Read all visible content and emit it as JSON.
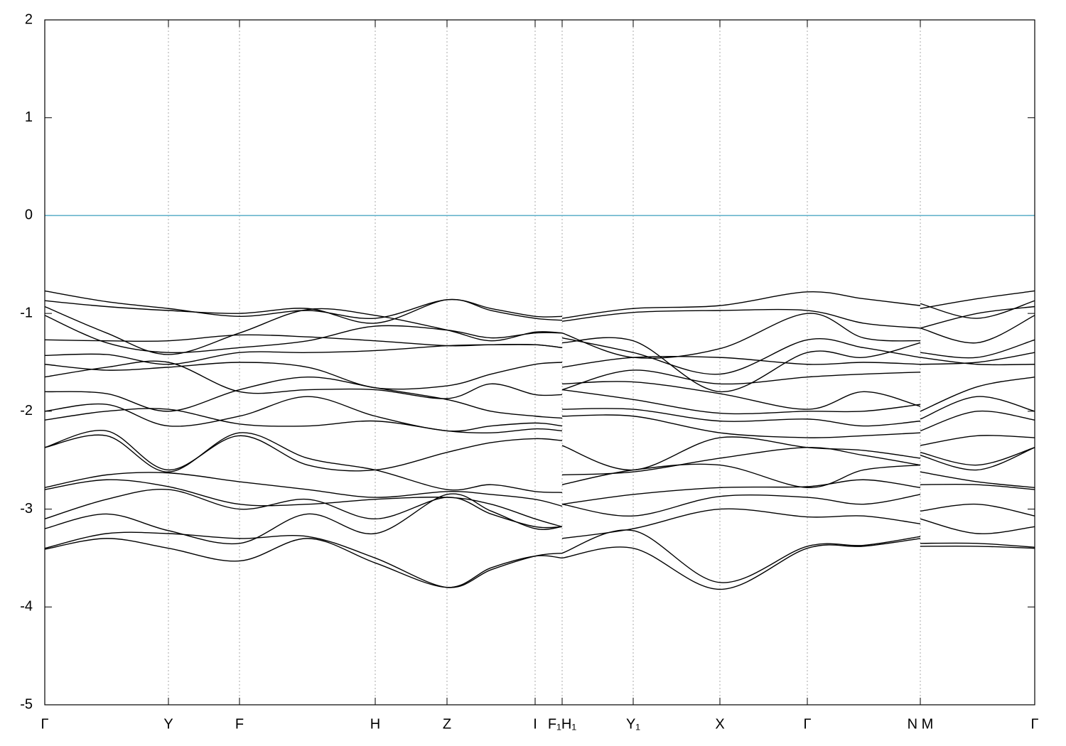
{
  "chart_data": {
    "type": "line",
    "x": [
      0,
      0.87,
      1.74,
      2.74,
      3.7,
      4.65,
      5.66,
      6.28,
      6.9,
      7.28,
      7.28,
      7.28,
      8.28,
      9.5,
      10.73,
      11.52,
      12.32,
      12.32,
      12.32,
      13.12,
      13.93
    ],
    "xlim": [
      0,
      13.93
    ],
    "xticks": [
      {
        "value": 0,
        "label": "Γ"
      },
      {
        "value": 1.74,
        "label": "Y"
      },
      {
        "value": 2.74,
        "label": "F"
      },
      {
        "value": 4.65,
        "label": "H"
      },
      {
        "value": 5.66,
        "label": "Z"
      },
      {
        "value": 6.9,
        "label": "I"
      },
      {
        "value": 7.28,
        "label": "F₁H₁"
      },
      {
        "value": 8.28,
        "label": "Y₁"
      },
      {
        "value": 9.5,
        "label": "X"
      },
      {
        "value": 10.73,
        "label": "Γ"
      },
      {
        "value": 12.32,
        "label": "N M"
      },
      {
        "value": 13.93,
        "label": "Γ"
      }
    ],
    "ylim": [
      -5,
      2
    ],
    "yticks": [
      2,
      1,
      0,
      -1,
      -2,
      -3,
      -4,
      -5
    ],
    "grid": true,
    "reference_line": {
      "y": 0,
      "color": "#5aaec8"
    },
    "series": [
      {
        "color": "#000000",
        "values": [
          -0.77,
          -0.88,
          -0.95,
          -1.03,
          -0.97,
          -1.05,
          -0.86,
          -0.95,
          -1.03,
          -1.03,
          null,
          -1.05,
          -0.95,
          -0.92,
          -0.78,
          -0.85,
          -0.92,
          null,
          -0.95,
          -0.85,
          -0.77
        ]
      },
      {
        "color": "#000000",
        "values": [
          -0.87,
          -0.93,
          -0.97,
          -1.0,
          -0.95,
          -1.1,
          -0.86,
          -0.97,
          -1.05,
          -1.07,
          null,
          -1.08,
          -0.99,
          -0.97,
          -0.97,
          -1.1,
          -1.15,
          null,
          -0.9,
          -1.05,
          -0.87
        ]
      },
      {
        "color": "#000000",
        "values": [
          -0.93,
          -1.2,
          -1.42,
          -1.2,
          -0.96,
          -1.02,
          -1.17,
          -1.28,
          -1.19,
          -1.2,
          null,
          -1.2,
          -1.45,
          -1.36,
          -1.0,
          -1.25,
          -1.28,
          null,
          -1.15,
          -1.0,
          -0.93
        ]
      },
      {
        "color": "#000000",
        "values": [
          -1.02,
          -1.3,
          -1.4,
          -1.35,
          -1.28,
          -1.13,
          -1.17,
          -1.25,
          -1.2,
          -1.2,
          null,
          -1.25,
          -1.4,
          -1.62,
          -1.27,
          -1.35,
          -1.45,
          null,
          -1.15,
          -1.3,
          -1.02
        ]
      },
      {
        "color": "#000000",
        "values": [
          -1.27,
          -1.28,
          -1.28,
          -1.22,
          -1.24,
          -1.28,
          -1.33,
          -1.32,
          -1.32,
          -1.35,
          null,
          -1.3,
          -1.28,
          -1.8,
          -1.4,
          -1.45,
          -1.3,
          null,
          -1.4,
          -1.45,
          -1.27
        ]
      },
      {
        "color": "#000000",
        "values": [
          -1.43,
          -1.42,
          -1.52,
          -1.4,
          -1.4,
          -1.38,
          -1.33,
          -1.32,
          -1.32,
          -1.35,
          null,
          -1.55,
          -1.45,
          -1.45,
          -1.52,
          -1.5,
          -1.52,
          null,
          -1.45,
          -1.52,
          -1.52
        ]
      },
      {
        "color": "#000000",
        "values": [
          -1.52,
          -1.58,
          -1.55,
          -1.5,
          -1.55,
          -1.76,
          -1.74,
          -1.62,
          -1.52,
          -1.5,
          null,
          -1.78,
          -1.58,
          -1.72,
          -1.65,
          -1.62,
          -1.6,
          null,
          -1.52,
          -1.5,
          -1.4
        ]
      },
      {
        "color": "#000000",
        "values": [
          -1.65,
          -1.55,
          -1.5,
          -1.8,
          -1.78,
          -1.78,
          -1.87,
          -1.72,
          -1.83,
          -1.83,
          null,
          -1.72,
          -1.7,
          -1.82,
          -1.98,
          -1.8,
          -1.95,
          null,
          -2.0,
          -1.75,
          -1.65
        ]
      },
      {
        "color": "#000000",
        "values": [
          -1.8,
          -1.82,
          -2.0,
          -1.78,
          -1.65,
          -1.76,
          -1.88,
          -2.0,
          -2.05,
          -2.07,
          null,
          -1.78,
          -1.88,
          -2.02,
          -2.0,
          -2.0,
          -1.93,
          null,
          -2.08,
          -1.85,
          -2.0
        ]
      },
      {
        "color": "#000000",
        "values": [
          -2.0,
          -1.93,
          -2.15,
          -2.05,
          -1.85,
          -2.05,
          -2.2,
          -2.15,
          -2.12,
          -2.15,
          null,
          -1.98,
          -1.98,
          -2.1,
          -2.08,
          -2.15,
          -2.1,
          null,
          -2.2,
          -2.0,
          -2.09
        ]
      },
      {
        "color": "#000000",
        "values": [
          -2.09,
          -2.0,
          -1.98,
          -2.13,
          -2.15,
          -2.1,
          -2.2,
          -2.22,
          -2.18,
          -2.2,
          null,
          -2.05,
          -2.05,
          -2.22,
          -2.27,
          -2.25,
          -2.22,
          null,
          -2.35,
          -2.25,
          -2.27
        ]
      },
      {
        "color": "#000000",
        "values": [
          -2.37,
          -2.2,
          -2.6,
          -2.25,
          -2.55,
          -2.6,
          -2.42,
          -2.32,
          -2.28,
          -2.3,
          null,
          -2.35,
          -2.6,
          -2.27,
          -2.37,
          -2.4,
          -2.48,
          null,
          -2.45,
          -2.6,
          -2.37
        ]
      },
      {
        "color": "#000000",
        "values": [
          -2.37,
          -2.25,
          -2.62,
          -2.22,
          -2.48,
          -2.6,
          -2.8,
          -2.75,
          -2.82,
          -2.83,
          null,
          -2.65,
          -2.62,
          -2.48,
          -2.37,
          -2.45,
          -2.55,
          null,
          -2.42,
          -2.55,
          -2.37
        ]
      },
      {
        "color": "#000000",
        "values": [
          -2.78,
          -2.65,
          -2.63,
          -2.72,
          -2.8,
          -2.88,
          -2.82,
          -2.85,
          -2.9,
          -2.97,
          null,
          -2.75,
          -2.6,
          -2.55,
          -2.78,
          -2.6,
          -2.55,
          null,
          -2.62,
          -2.72,
          -2.78
        ]
      },
      {
        "color": "#000000",
        "values": [
          -2.8,
          -2.7,
          -2.77,
          -2.95,
          -2.95,
          -2.9,
          -2.88,
          -2.95,
          -3.1,
          -3.18,
          null,
          -2.95,
          -2.85,
          -2.78,
          -2.77,
          -2.7,
          -2.78,
          null,
          -2.75,
          -2.75,
          -2.8
        ]
      },
      {
        "color": "#000000",
        "values": [
          -3.1,
          -2.9,
          -2.8,
          -3.0,
          -2.9,
          -3.1,
          -2.88,
          -3.05,
          -3.18,
          -3.18,
          null,
          -2.95,
          -3.07,
          -2.87,
          -2.88,
          -2.95,
          -2.85,
          null,
          -3.02,
          -2.95,
          -3.07
        ]
      },
      {
        "color": "#000000",
        "values": [
          -3.2,
          -3.05,
          -3.22,
          -3.35,
          -3.05,
          -3.25,
          -2.85,
          -3.02,
          -3.2,
          -3.18,
          null,
          -3.3,
          -3.2,
          -3.0,
          -3.08,
          -3.07,
          -3.15,
          null,
          -3.1,
          -3.25,
          -3.18
        ]
      },
      {
        "color": "#000000",
        "values": [
          -3.4,
          -3.25,
          -3.25,
          -3.3,
          -3.28,
          -3.5,
          -3.8,
          -3.62,
          -3.48,
          -3.45,
          null,
          -3.45,
          -3.22,
          -3.75,
          -3.38,
          -3.37,
          -3.28,
          null,
          -3.35,
          -3.35,
          -3.39
        ]
      },
      {
        "color": "#000000",
        "values": [
          -3.41,
          -3.3,
          -3.4,
          -3.53,
          -3.3,
          -3.55,
          -3.8,
          -3.6,
          -3.48,
          -3.5,
          null,
          -3.5,
          -3.4,
          -3.82,
          -3.4,
          -3.38,
          -3.3,
          null,
          -3.38,
          -3.38,
          -3.4
        ]
      }
    ]
  }
}
